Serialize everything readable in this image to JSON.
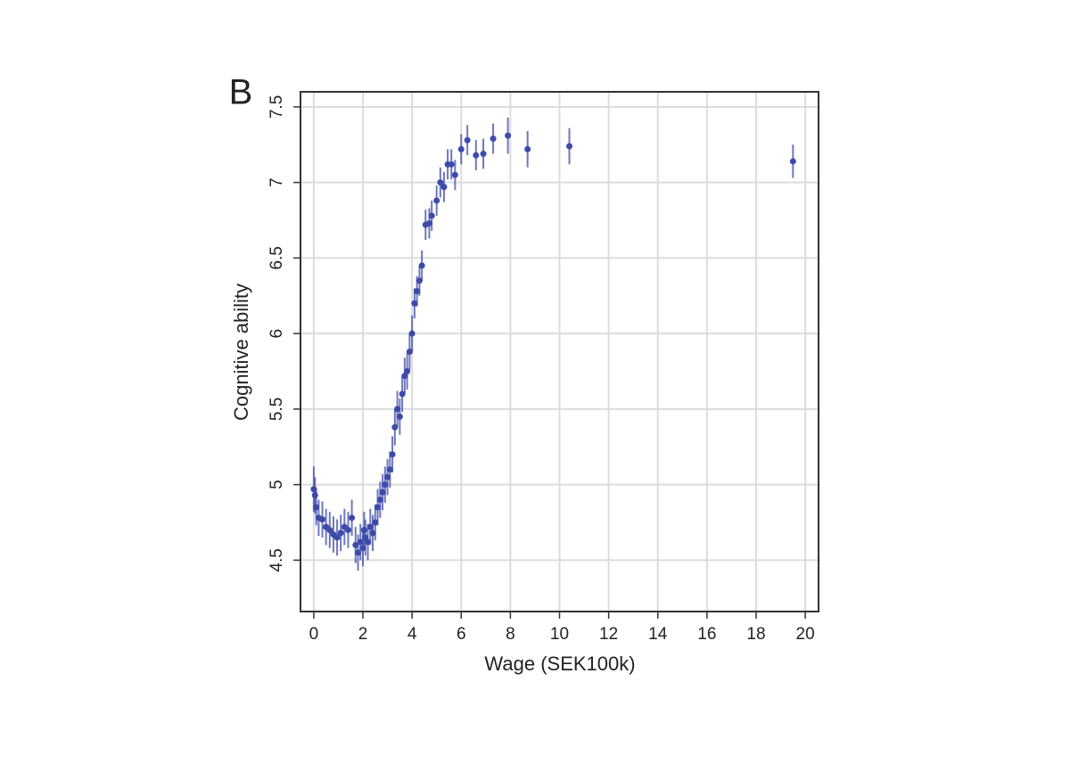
{
  "chart_data": {
    "type": "scatter",
    "panel_label": "B",
    "xlabel": "Wage (SEK100k)",
    "ylabel": "Cognitive ability",
    "xlim": [
      -0.54,
      20.54
    ],
    "ylim": [
      4.16,
      7.6
    ],
    "xticks": [
      0,
      2,
      4,
      6,
      8,
      10,
      12,
      14,
      16,
      18,
      20
    ],
    "yticks": [
      4.5,
      5,
      5.5,
      6,
      6.5,
      7,
      7.5
    ],
    "grid": true,
    "series": [
      {
        "color": "#3d4aa8",
        "x": [
          0.0,
          0.05,
          0.1,
          0.2,
          0.35,
          0.5,
          0.65,
          0.8,
          0.95,
          1.1,
          1.25,
          1.4,
          1.55,
          1.7,
          1.8,
          1.9,
          2.0,
          2.05,
          2.1,
          2.2,
          2.3,
          2.4,
          2.5,
          2.6,
          2.7,
          2.8,
          2.9,
          3.0,
          3.1,
          3.2,
          3.3,
          3.4,
          3.5,
          3.6,
          3.7,
          3.8,
          3.9,
          4.0,
          4.1,
          4.2,
          4.3,
          4.4,
          4.55,
          4.7,
          4.8,
          5.0,
          5.15,
          5.3,
          5.45,
          5.6,
          5.75,
          6.0,
          6.25,
          6.6,
          6.9,
          7.3,
          7.9,
          8.7,
          10.4,
          19.5
        ],
        "values": [
          4.97,
          4.93,
          4.85,
          4.78,
          4.77,
          4.72,
          4.7,
          4.67,
          4.65,
          4.68,
          4.72,
          4.7,
          4.78,
          4.6,
          4.55,
          4.62,
          4.58,
          4.7,
          4.65,
          4.62,
          4.72,
          4.68,
          4.75,
          4.85,
          4.9,
          4.95,
          5.0,
          5.05,
          5.1,
          5.2,
          5.38,
          5.5,
          5.45,
          5.6,
          5.72,
          5.75,
          5.88,
          6.0,
          6.2,
          6.28,
          6.35,
          6.45,
          6.72,
          6.73,
          6.78,
          6.88,
          7.0,
          6.97,
          7.12,
          7.12,
          7.05,
          7.22,
          7.28,
          7.18,
          7.19,
          7.29,
          7.31,
          7.22,
          7.24,
          7.14
        ],
        "errors": [
          0.15,
          0.12,
          0.12,
          0.12,
          0.12,
          0.12,
          0.12,
          0.12,
          0.12,
          0.12,
          0.12,
          0.12,
          0.12,
          0.12,
          0.12,
          0.12,
          0.12,
          0.12,
          0.12,
          0.12,
          0.12,
          0.12,
          0.12,
          0.12,
          0.12,
          0.12,
          0.12,
          0.12,
          0.12,
          0.12,
          0.12,
          0.12,
          0.12,
          0.12,
          0.12,
          0.12,
          0.12,
          0.12,
          0.1,
          0.1,
          0.1,
          0.1,
          0.1,
          0.1,
          0.1,
          0.1,
          0.1,
          0.1,
          0.1,
          0.1,
          0.1,
          0.1,
          0.1,
          0.1,
          0.1,
          0.1,
          0.12,
          0.12,
          0.12,
          0.11
        ]
      }
    ]
  }
}
